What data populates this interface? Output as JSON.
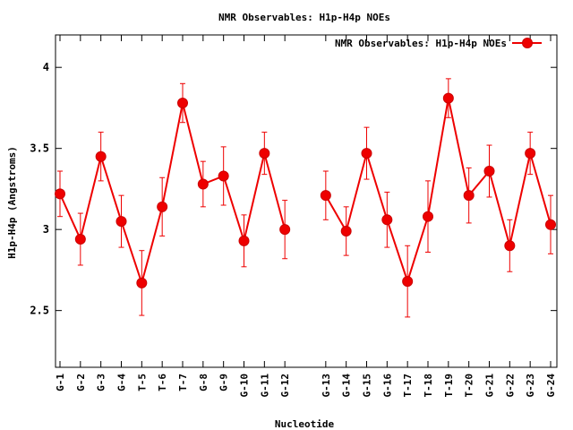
{
  "chart_data": {
    "type": "line",
    "title": "NMR Observables: H1p-H4p NOEs",
    "xlabel": "Nucleotide",
    "ylabel": "H1p-H4p (Angstroms)",
    "ylim": [
      2.15,
      4.2
    ],
    "yticks": [
      "2.5",
      "3",
      "3.5",
      "4"
    ],
    "grid": false,
    "legend_position": "top-right",
    "line_color": "#ee0000",
    "series": [
      {
        "name": "NMR Observables: H1p-H4p NOEs",
        "segments": [
          [
            {
              "label": "G-1",
              "y": 3.22,
              "err": 0.14
            },
            {
              "label": "G-2",
              "y": 2.94,
              "err": 0.16
            },
            {
              "label": "G-3",
              "y": 3.45,
              "err": 0.15
            },
            {
              "label": "G-4",
              "y": 3.05,
              "err": 0.16
            },
            {
              "label": "T-5",
              "y": 2.67,
              "err": 0.2
            },
            {
              "label": "T-6",
              "y": 3.14,
              "err": 0.18
            },
            {
              "label": "T-7",
              "y": 3.78,
              "err": 0.12
            },
            {
              "label": "G-8",
              "y": 3.28,
              "err": 0.14
            },
            {
              "label": "G-9",
              "y": 3.33,
              "err": 0.18
            },
            {
              "label": "G-10",
              "y": 2.93,
              "err": 0.16
            },
            {
              "label": "G-11",
              "y": 3.47,
              "err": 0.13
            },
            {
              "label": "G-12",
              "y": 3.0,
              "err": 0.18
            }
          ],
          [
            {
              "label": "G-13",
              "y": 3.21,
              "err": 0.15
            },
            {
              "label": "G-14",
              "y": 2.99,
              "err": 0.15
            },
            {
              "label": "G-15",
              "y": 3.47,
              "err": 0.16
            },
            {
              "label": "G-16",
              "y": 3.06,
              "err": 0.17
            },
            {
              "label": "T-17",
              "y": 2.68,
              "err": 0.22
            },
            {
              "label": "T-18",
              "y": 3.08,
              "err": 0.22
            },
            {
              "label": "T-19",
              "y": 3.81,
              "err": 0.12
            },
            {
              "label": "T-20",
              "y": 3.21,
              "err": 0.17
            },
            {
              "label": "G-21",
              "y": 3.36,
              "err": 0.16
            },
            {
              "label": "G-22",
              "y": 2.9,
              "err": 0.16
            },
            {
              "label": "G-23",
              "y": 3.47,
              "err": 0.13
            },
            {
              "label": "G-24",
              "y": 3.03,
              "err": 0.18
            }
          ]
        ]
      }
    ]
  }
}
